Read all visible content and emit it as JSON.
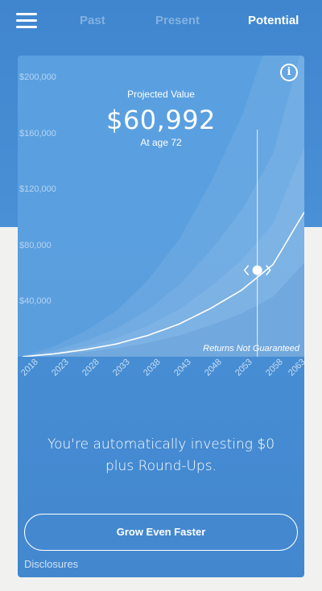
{
  "nav": {
    "tabs": [
      {
        "label": "Past"
      },
      {
        "label": "Present"
      },
      {
        "label": "Potential"
      }
    ],
    "active_tab": "Potential"
  },
  "projection": {
    "label": "Projected Value",
    "value": "$60,992",
    "age": "At age 72"
  },
  "chart_data": {
    "type": "area",
    "title": "",
    "xlabel": "",
    "ylabel": "",
    "x_ticks": [
      "2018",
      "2023",
      "2028",
      "2033",
      "2038",
      "2043",
      "2048",
      "2053",
      "2058",
      "2063"
    ],
    "y_ticks": [
      "$40,000",
      "$80,000",
      "$120,000",
      "$160,000",
      "$200,000"
    ],
    "ylim": [
      0,
      200000
    ],
    "xlim": [
      2018,
      2063
    ],
    "series": [
      {
        "x": [
          2018,
          2023,
          2028,
          2033,
          2038,
          2043,
          2048,
          2053,
          2058,
          2063
        ],
        "values": [
          0,
          2000,
          5000,
          9000,
          15000,
          23000,
          34000,
          47000,
          65000,
          102000
        ]
      }
    ],
    "selected": {
      "x": 2055.5,
      "y": 60992
    },
    "grid": false,
    "note": "Returns Not Guaranteed"
  },
  "message": {
    "line1": "You're automatically investing $0",
    "line2": "plus Round-Ups."
  },
  "cta_label": "Grow Even Faster",
  "disclosures_label": "Disclosures",
  "colors": {
    "primary": "#4a90d6",
    "background": "#f1f2f0"
  },
  "icons": {
    "menu": "hamburger-menu-icon",
    "info": "info-circle-icon",
    "scrubber": "chevron-left-right-icon"
  }
}
